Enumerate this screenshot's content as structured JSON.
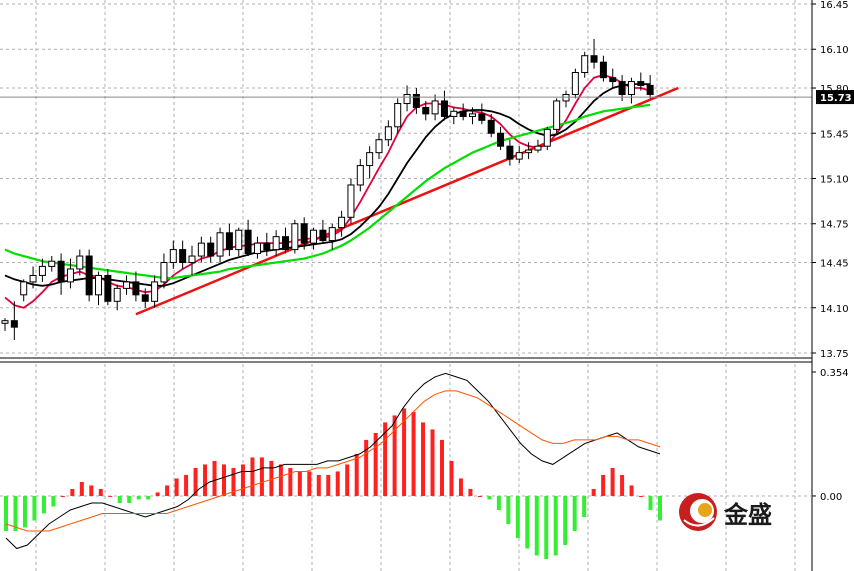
{
  "chart_data": [
    {
      "type": "candlestick",
      "panel": "price",
      "y_ticks": [
        "16.45",
        "16.10",
        "15.80",
        "15.45",
        "15.10",
        "14.75",
        "14.45",
        "14.10",
        "13.75"
      ],
      "ylim": [
        13.75,
        16.45
      ],
      "current_price_label": "15.73",
      "current_price": 15.73,
      "grid": true,
      "candles": [
        [
          13.98,
          14.02,
          13.92,
          14.0
        ],
        [
          14.0,
          14.15,
          13.85,
          13.95
        ],
        [
          14.2,
          14.32,
          14.15,
          14.3
        ],
        [
          14.3,
          14.42,
          14.25,
          14.35
        ],
        [
          14.35,
          14.48,
          14.3,
          14.42
        ],
        [
          14.42,
          14.5,
          14.38,
          14.46
        ],
        [
          14.46,
          14.52,
          14.2,
          14.3
        ],
        [
          14.3,
          14.48,
          14.25,
          14.4
        ],
        [
          14.4,
          14.55,
          14.35,
          14.5
        ],
        [
          14.5,
          14.55,
          14.15,
          14.2
        ],
        [
          14.2,
          14.38,
          14.12,
          14.35
        ],
        [
          14.35,
          14.4,
          14.12,
          14.15
        ],
        [
          14.15,
          14.28,
          14.08,
          14.25
        ],
        [
          14.25,
          14.35,
          14.2,
          14.3
        ],
        [
          14.3,
          14.38,
          14.15,
          14.2
        ],
        [
          14.2,
          14.25,
          14.1,
          14.15
        ],
        [
          14.15,
          14.35,
          14.1,
          14.3
        ],
        [
          14.3,
          14.52,
          14.25,
          14.45
        ],
        [
          14.45,
          14.62,
          14.4,
          14.55
        ],
        [
          14.55,
          14.62,
          14.4,
          14.45
        ],
        [
          14.45,
          14.58,
          14.35,
          14.5
        ],
        [
          14.5,
          14.65,
          14.45,
          14.6
        ],
        [
          14.6,
          14.65,
          14.45,
          14.5
        ],
        [
          14.5,
          14.72,
          14.45,
          14.68
        ],
        [
          14.68,
          14.75,
          14.5,
          14.55
        ],
        [
          14.55,
          14.72,
          14.5,
          14.7
        ],
        [
          14.7,
          14.78,
          14.5,
          14.52
        ],
        [
          14.52,
          14.65,
          14.48,
          14.6
        ],
        [
          14.6,
          14.68,
          14.5,
          14.55
        ],
        [
          14.55,
          14.7,
          14.5,
          14.65
        ],
        [
          14.65,
          14.72,
          14.52,
          14.55
        ],
        [
          14.55,
          14.78,
          14.52,
          14.75
        ],
        [
          14.75,
          14.8,
          14.55,
          14.6
        ],
        [
          14.6,
          14.72,
          14.55,
          14.7
        ],
        [
          14.7,
          14.78,
          14.6,
          14.62
        ],
        [
          14.62,
          14.75,
          14.55,
          14.72
        ],
        [
          14.72,
          14.85,
          14.65,
          14.8
        ],
        [
          14.8,
          15.1,
          14.75,
          15.05
        ],
        [
          15.05,
          15.25,
          15.0,
          15.2
        ],
        [
          15.2,
          15.35,
          15.1,
          15.3
        ],
        [
          15.3,
          15.45,
          15.25,
          15.4
        ],
        [
          15.4,
          15.55,
          15.35,
          15.5
        ],
        [
          15.5,
          15.72,
          15.45,
          15.68
        ],
        [
          15.68,
          15.82,
          15.62,
          15.75
        ],
        [
          15.75,
          15.8,
          15.6,
          15.65
        ],
        [
          15.65,
          15.7,
          15.55,
          15.6
        ],
        [
          15.6,
          15.75,
          15.55,
          15.7
        ],
        [
          15.7,
          15.78,
          15.55,
          15.58
        ],
        [
          15.58,
          15.65,
          15.52,
          15.62
        ],
        [
          15.62,
          15.68,
          15.55,
          15.58
        ],
        [
          15.58,
          15.65,
          15.52,
          15.6
        ],
        [
          15.6,
          15.68,
          15.52,
          15.55
        ],
        [
          15.55,
          15.6,
          15.42,
          15.45
        ],
        [
          15.45,
          15.5,
          15.32,
          15.35
        ],
        [
          15.35,
          15.4,
          15.2,
          15.25
        ],
        [
          15.25,
          15.35,
          15.22,
          15.3
        ],
        [
          15.3,
          15.38,
          15.25,
          15.32
        ],
        [
          15.32,
          15.4,
          15.3,
          15.35
        ],
        [
          15.35,
          15.5,
          15.32,
          15.48
        ],
        [
          15.48,
          15.72,
          15.45,
          15.7
        ],
        [
          15.7,
          15.78,
          15.65,
          15.75
        ],
        [
          15.75,
          15.95,
          15.72,
          15.92
        ],
        [
          15.92,
          16.08,
          15.88,
          16.05
        ],
        [
          16.05,
          16.18,
          15.95,
          16.0
        ],
        [
          16.0,
          16.05,
          15.85,
          15.88
        ],
        [
          15.88,
          15.95,
          15.8,
          15.85
        ],
        [
          15.85,
          15.9,
          15.7,
          15.75
        ],
        [
          15.75,
          15.88,
          15.68,
          15.85
        ],
        [
          15.85,
          15.92,
          15.78,
          15.82
        ],
        [
          15.82,
          15.9,
          15.72,
          15.75
        ]
      ],
      "series": [
        {
          "color": "#e0003c",
          "values": [
            14.18,
            14.12,
            14.1,
            14.15,
            14.22,
            14.3,
            14.34,
            14.36,
            14.38,
            14.35,
            14.34,
            14.3,
            14.27,
            14.26,
            14.24,
            14.22,
            14.23,
            14.28,
            14.35,
            14.4,
            14.44,
            14.48,
            14.5,
            14.54,
            14.56,
            14.58,
            14.58,
            14.6,
            14.6,
            14.6,
            14.6,
            14.62,
            14.63,
            14.64,
            14.64,
            14.66,
            14.7,
            14.8,
            14.92,
            15.05,
            15.18,
            15.3,
            15.45,
            15.58,
            15.65,
            15.68,
            15.68,
            15.67,
            15.65,
            15.64,
            15.62,
            15.61,
            15.58,
            15.52,
            15.44,
            15.38,
            15.35,
            15.34,
            15.36,
            15.45,
            15.55,
            15.68,
            15.8,
            15.88,
            15.9,
            15.88,
            15.84,
            15.8,
            15.8,
            15.78
          ]
        },
        {
          "color": "#000000",
          "values": [
            14.35,
            14.32,
            14.3,
            14.28,
            14.27,
            14.28,
            14.3,
            14.31,
            14.32,
            14.33,
            14.33,
            14.32,
            14.31,
            14.3,
            14.29,
            14.28,
            14.27,
            14.27,
            14.29,
            14.32,
            14.35,
            14.38,
            14.41,
            14.44,
            14.47,
            14.49,
            14.51,
            14.53,
            14.54,
            14.55,
            14.56,
            14.57,
            14.58,
            14.59,
            14.6,
            14.61,
            14.63,
            14.67,
            14.73,
            14.8,
            14.88,
            14.98,
            15.1,
            15.22,
            15.32,
            15.42,
            15.5,
            15.56,
            15.6,
            15.62,
            15.63,
            15.63,
            15.62,
            15.6,
            15.57,
            15.52,
            15.48,
            15.45,
            15.43,
            15.44,
            15.48,
            15.54,
            15.62,
            15.7,
            15.76,
            15.8,
            15.82,
            15.83,
            15.83,
            15.83
          ]
        },
        {
          "color": "#00dd00",
          "values": [
            14.55,
            14.52,
            14.5,
            14.48,
            14.46,
            14.45,
            14.44,
            14.43,
            14.42,
            14.41,
            14.4,
            14.39,
            14.38,
            14.37,
            14.36,
            14.35,
            14.34,
            14.33,
            14.33,
            14.34,
            14.35,
            14.36,
            14.37,
            14.38,
            14.4,
            14.41,
            14.42,
            14.43,
            14.44,
            14.45,
            14.46,
            14.47,
            14.48,
            14.5,
            14.52,
            14.55,
            14.58,
            14.62,
            14.67,
            14.72,
            14.78,
            14.84,
            14.9,
            14.96,
            15.02,
            15.08,
            15.13,
            15.18,
            15.22,
            15.26,
            15.3,
            15.33,
            15.36,
            15.39,
            15.41,
            15.43,
            15.45,
            15.47,
            15.49,
            15.51,
            15.53,
            15.55,
            15.58,
            15.6,
            15.62,
            15.63,
            15.64,
            15.65,
            15.66,
            15.67
          ]
        }
      ],
      "trendline": {
        "color": "#ee1111",
        "from": [
          14,
          14.05
        ],
        "to": [
          72,
          15.8
        ]
      }
    },
    {
      "type": "bar",
      "panel": "macd",
      "y_ticks": [
        "0.354",
        "0.00"
      ],
      "ylim": [
        -0.2,
        0.354
      ],
      "histogram": [
        -0.1,
        -0.1,
        -0.09,
        -0.07,
        -0.05,
        -0.03,
        0.0,
        0.02,
        0.04,
        0.03,
        0.02,
        0.0,
        -0.02,
        -0.02,
        -0.01,
        -0.01,
        0.01,
        0.03,
        0.05,
        0.06,
        0.08,
        0.09,
        0.1,
        0.09,
        0.08,
        0.09,
        0.11,
        0.11,
        0.1,
        0.09,
        0.08,
        0.07,
        0.07,
        0.06,
        0.06,
        0.07,
        0.09,
        0.12,
        0.16,
        0.18,
        0.21,
        0.23,
        0.25,
        0.24,
        0.21,
        0.19,
        0.16,
        0.1,
        0.05,
        0.02,
        0.0,
        -0.01,
        -0.04,
        -0.08,
        -0.12,
        -0.15,
        -0.17,
        -0.18,
        -0.17,
        -0.14,
        -0.1,
        -0.06,
        0.02,
        0.06,
        0.08,
        0.06,
        0.03,
        0.0,
        -0.04,
        -0.07
      ],
      "series": [
        {
          "color": "#000000",
          "values": [
            -0.12,
            -0.15,
            -0.14,
            -0.11,
            -0.08,
            -0.06,
            -0.04,
            -0.03,
            -0.02,
            -0.02,
            -0.03,
            -0.04,
            -0.05,
            -0.06,
            -0.05,
            -0.04,
            -0.03,
            -0.01,
            0.02,
            0.04,
            0.05,
            0.06,
            0.07,
            0.07,
            0.08,
            0.08,
            0.09,
            0.09,
            0.09,
            0.09,
            0.1,
            0.1,
            0.11,
            0.12,
            0.14,
            0.17,
            0.2,
            0.25,
            0.29,
            0.32,
            0.34,
            0.35,
            0.34,
            0.33,
            0.3,
            0.27,
            0.23,
            0.19,
            0.15,
            0.12,
            0.1,
            0.09,
            0.11,
            0.13,
            0.15,
            0.16,
            0.17,
            0.18,
            0.16,
            0.14,
            0.13,
            0.12
          ]
        },
        {
          "color": "#ff5500",
          "values": [
            -0.08,
            -0.09,
            -0.1,
            -0.1,
            -0.1,
            -0.09,
            -0.08,
            -0.07,
            -0.06,
            -0.05,
            -0.05,
            -0.05,
            -0.05,
            -0.05,
            -0.05,
            -0.05,
            -0.04,
            -0.03,
            -0.02,
            -0.01,
            0.0,
            0.01,
            0.02,
            0.03,
            0.04,
            0.05,
            0.06,
            0.07,
            0.07,
            0.08,
            0.08,
            0.09,
            0.1,
            0.11,
            0.13,
            0.15,
            0.18,
            0.21,
            0.24,
            0.27,
            0.29,
            0.3,
            0.3,
            0.29,
            0.28,
            0.26,
            0.24,
            0.22,
            0.2,
            0.18,
            0.16,
            0.15,
            0.15,
            0.16,
            0.16,
            0.16,
            0.17,
            0.17,
            0.16,
            0.16,
            0.15,
            0.14
          ]
        }
      ]
    }
  ],
  "logo": {
    "text": "金盛",
    "icon": "jinsheng-logo-icon"
  }
}
